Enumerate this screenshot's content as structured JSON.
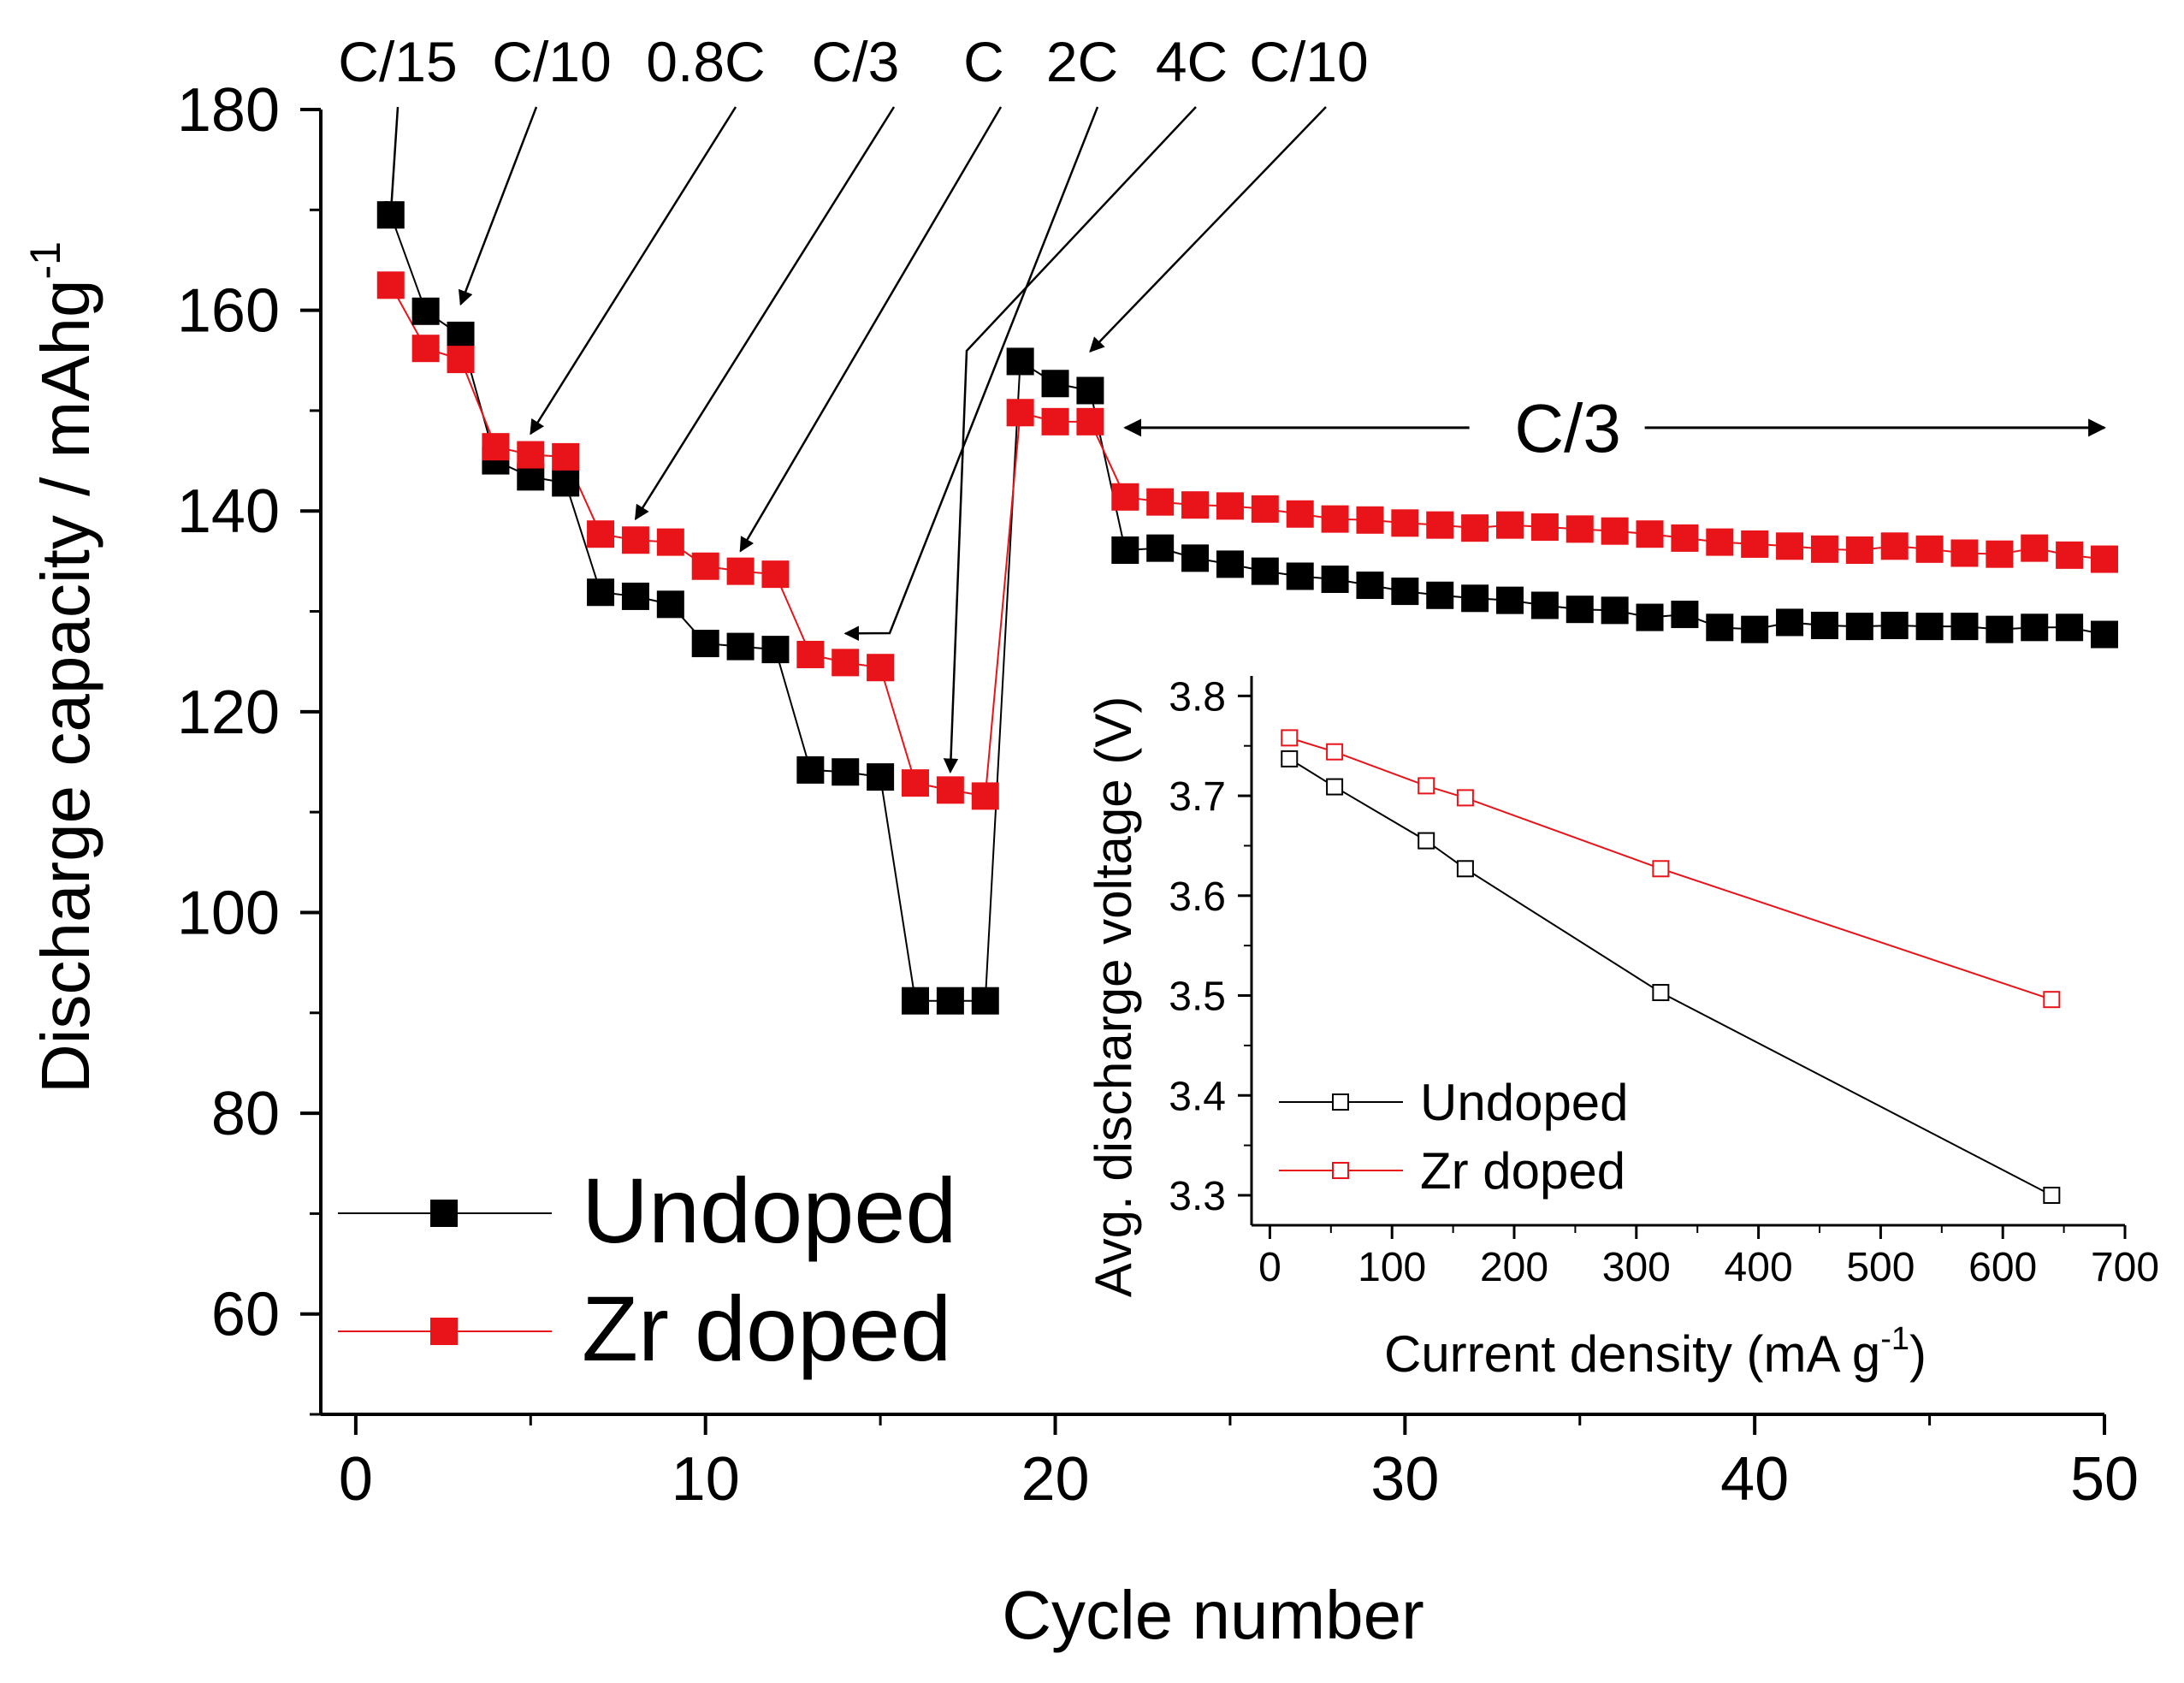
{
  "chart_data": [
    {
      "type": "line",
      "title": "",
      "xlabel": "Cycle number",
      "ylabel": "Discharge capacity / mAhg",
      "ylabel_superscript": "-1",
      "xlim": [
        -1,
        50
      ],
      "ylim": [
        50,
        180
      ],
      "xticks": [
        0,
        10,
        20,
        30,
        40,
        50
      ],
      "xtick_labels": [
        "0",
        "10",
        "20",
        "30",
        "40",
        "50"
      ],
      "yticks": [
        60,
        80,
        100,
        120,
        140,
        160,
        180
      ],
      "ytick_labels": [
        "60",
        "80",
        "100",
        "120",
        "140",
        "160",
        "180"
      ],
      "x": [
        1,
        2,
        3,
        4,
        5,
        6,
        7,
        8,
        9,
        10,
        11,
        12,
        13,
        14,
        15,
        16,
        17,
        18,
        19,
        20,
        21,
        22,
        23,
        24,
        25,
        26,
        27,
        28,
        29,
        30,
        31,
        32,
        33,
        34,
        35,
        36,
        37,
        38,
        39,
        40,
        41,
        42,
        43,
        44,
        45,
        46,
        47,
        48,
        49,
        50
      ],
      "series": [
        {
          "name": "Undoped",
          "color": "#000000",
          "marker": "square",
          "values": [
            169.5,
            159.9,
            157.5,
            145.0,
            143.4,
            142.8,
            131.9,
            131.5,
            130.7,
            126.8,
            126.5,
            126.2,
            114.2,
            114.0,
            113.5,
            91.2,
            91.2,
            91.2,
            154.9,
            152.7,
            152.0,
            136.1,
            136.3,
            135.3,
            134.7,
            134.0,
            133.5,
            133.2,
            132.6,
            132.0,
            131.6,
            131.3,
            131.1,
            130.6,
            130.2,
            130.1,
            129.4,
            129.7,
            128.4,
            128.2,
            128.9,
            128.6,
            128.5,
            128.6,
            128.5,
            128.5,
            128.2,
            128.4,
            128.4,
            127.7
          ]
        },
        {
          "name": "Zr doped",
          "color": "#e8141a",
          "marker": "square",
          "values": [
            162.5,
            156.2,
            155.1,
            146.4,
            145.6,
            145.4,
            137.7,
            137.1,
            136.9,
            134.5,
            134.0,
            133.7,
            125.7,
            124.9,
            124.4,
            112.9,
            112.2,
            111.6,
            149.8,
            148.9,
            148.9,
            141.4,
            140.9,
            140.6,
            140.5,
            140.2,
            139.7,
            139.2,
            139.1,
            138.8,
            138.6,
            138.3,
            138.6,
            138.4,
            138.2,
            138.0,
            137.7,
            137.3,
            136.9,
            136.7,
            136.5,
            136.2,
            136.1,
            136.5,
            136.2,
            135.8,
            135.7,
            136.3,
            135.6,
            135.2
          ]
        }
      ],
      "rate_annotations": [
        "C/15",
        "C/10",
        "0.8C",
        "C/3",
        "C",
        "2C",
        "4C",
        "C/10"
      ],
      "rate_annotation_targets": [
        {
          "x": 1,
          "y": 169.5
        },
        {
          "x": 3,
          "y": 160.6
        },
        {
          "x": 5,
          "y": 147.7
        },
        {
          "x": 8,
          "y": 139.2
        },
        {
          "x": 11,
          "y": 136.0
        },
        {
          "x": 14,
          "y": 127.8
        },
        {
          "x": 17,
          "y": 114.0
        },
        {
          "x": 21,
          "y": 155.9
        }
      ],
      "span_annotation": {
        "label": "C/3",
        "x_start": 22,
        "x_end": 50,
        "y": 148.3
      },
      "legend": {
        "position": "bottom-left",
        "entries": [
          "Undoped",
          "Zr doped"
        ]
      }
    },
    {
      "type": "line",
      "title": "",
      "xlabel": "Current density (mA g",
      "xlabel_superscript": "-1",
      "xlabel_suffix": ")",
      "ylabel": "Avg. discharge voltage (V)",
      "xlim": [
        -15,
        700
      ],
      "ylim": [
        3.27,
        3.82
      ],
      "xticks": [
        0,
        100,
        200,
        300,
        400,
        500,
        600,
        700
      ],
      "xtick_labels": [
        "0",
        "100",
        "200",
        "300",
        "400",
        "500",
        "600",
        "700"
      ],
      "yticks": [
        3.3,
        3.4,
        3.5,
        3.6,
        3.7,
        3.8
      ],
      "ytick_labels": [
        "3.3",
        "3.4",
        "3.5",
        "3.6",
        "3.7",
        "3.8"
      ],
      "series": [
        {
          "name": "Undoped",
          "color": "#000000",
          "marker": "open-square",
          "x": [
            16,
            53,
            128,
            160,
            320,
            640
          ],
          "values": [
            3.737,
            3.709,
            3.655,
            3.627,
            3.503,
            3.3
          ]
        },
        {
          "name": "Zr doped",
          "color": "#e8141a",
          "marker": "open-square",
          "x": [
            16,
            53,
            128,
            160,
            320,
            640
          ],
          "values": [
            3.758,
            3.744,
            3.71,
            3.698,
            3.627,
            3.496
          ]
        }
      ],
      "legend": {
        "position": "bottom-left",
        "entries": [
          "Undoped",
          "Zr doped"
        ]
      }
    }
  ]
}
